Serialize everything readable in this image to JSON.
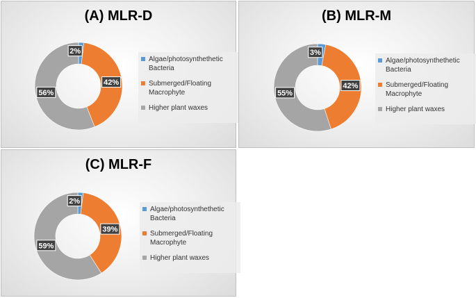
{
  "colors": {
    "algae": "#5b9bd5",
    "submerged": "#ed7d31",
    "higher": "#a5a5a5",
    "label_bg": "#404040",
    "label_text": "#ffffff"
  },
  "legend": {
    "items": [
      {
        "label": "Algae/photosynthethetic Bacteria",
        "color_key": "algae"
      },
      {
        "label": "Submerged/Floating Macrophyte",
        "color_key": "submerged"
      },
      {
        "label": "Higher plant waxes",
        "color_key": "higher"
      }
    ]
  },
  "chart_data": [
    {
      "type": "pie",
      "title": "(A) MLR-D",
      "categories": [
        "Algae/photosynthethetic Bacteria",
        "Submerged/Floating Macrophyte",
        "Higher plant waxes"
      ],
      "values": [
        2,
        42,
        56
      ],
      "labels": [
        "2%",
        "42%",
        "56%"
      ],
      "legend": "right"
    },
    {
      "type": "pie",
      "title": "(B) MLR-M",
      "categories": [
        "Algae/photosynthethetic Bacteria",
        "Submerged/Floating Macrophyte",
        "Higher plant waxes"
      ],
      "values": [
        3,
        42,
        55
      ],
      "labels": [
        "3%",
        "42%",
        "55%"
      ],
      "legend": "right"
    },
    {
      "type": "pie",
      "title": "(C) MLR-F",
      "categories": [
        "Algae/photosynthethetic Bacteria",
        "Submerged/Floating Macrophyte",
        "Higher plant waxes"
      ],
      "values": [
        2,
        39,
        59
      ],
      "labels": [
        "2%",
        "39%",
        "59%"
      ],
      "legend": "right"
    }
  ]
}
